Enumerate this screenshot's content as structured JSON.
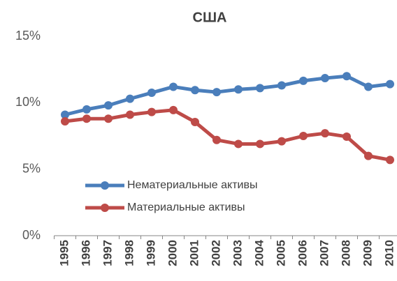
{
  "chart_data": {
    "type": "line",
    "title": "США",
    "categories": [
      "1995",
      "1996",
      "1997",
      "1998",
      "1999",
      "2000",
      "2001",
      "2002",
      "2003",
      "2004",
      "2005",
      "2006",
      "2007",
      "2008",
      "2009",
      "2010"
    ],
    "series": [
      {
        "name": "Нематериальные активы",
        "color": "#4a7ebb",
        "values": [
          9.1,
          9.5,
          9.8,
          10.3,
          10.75,
          11.2,
          10.95,
          10.8,
          11.0,
          11.1,
          11.3,
          11.65,
          11.85,
          12.0,
          11.2,
          11.4
        ]
      },
      {
        "name": "Материальные активы",
        "color": "#be4b48",
        "values": [
          8.6,
          8.8,
          8.8,
          9.1,
          9.3,
          9.45,
          8.55,
          7.2,
          6.9,
          6.9,
          7.1,
          7.5,
          7.7,
          7.45,
          6.0,
          5.7
        ]
      }
    ],
    "ylim": [
      0,
      15
    ],
    "yticks": [
      {
        "value": 0,
        "label": "0%"
      },
      {
        "value": 5,
        "label": "5%"
      },
      {
        "value": 10,
        "label": "10%"
      },
      {
        "value": 15,
        "label": "15%"
      }
    ],
    "grid": false
  }
}
